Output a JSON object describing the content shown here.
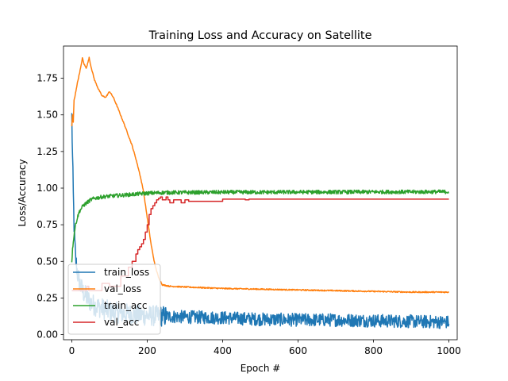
{
  "chart_data": {
    "type": "line",
    "title": "Training Loss and Accuracy on Satellite",
    "xlabel": "Epoch #",
    "ylabel": "Loss/Accuracy",
    "xlim": [
      -22,
      1022
    ],
    "ylim": [
      -0.035,
      1.97
    ],
    "xticks": [
      0,
      200,
      400,
      600,
      800,
      1000
    ],
    "yticks": [
      0.0,
      0.25,
      0.5,
      0.75,
      1.0,
      1.25,
      1.5,
      1.75
    ],
    "grid": false,
    "legend_position": "lower-left",
    "series": [
      {
        "name": "train_loss",
        "color": "#1f77b4",
        "x": [
          0,
          2,
          4,
          6,
          8,
          10,
          15,
          20,
          25,
          30,
          40,
          50,
          60,
          80,
          100,
          120,
          150,
          200,
          250,
          300,
          400,
          500,
          600,
          700,
          800,
          900,
          1000
        ],
        "y": [
          1.49,
          1.2,
          0.95,
          0.75,
          0.62,
          0.52,
          0.42,
          0.36,
          0.32,
          0.29,
          0.25,
          0.22,
          0.2,
          0.18,
          0.16,
          0.15,
          0.14,
          0.13,
          0.125,
          0.12,
          0.115,
          0.105,
          0.1,
          0.1,
          0.095,
          0.09,
          0.085
        ],
        "noise": 0.045
      },
      {
        "name": "val_loss",
        "color": "#ff7f0e",
        "x": [
          0,
          2,
          4,
          6,
          8,
          10,
          12,
          15,
          20,
          25,
          28,
          32,
          38,
          42,
          46,
          50,
          60,
          70,
          80,
          90,
          100,
          105,
          110,
          120,
          140,
          160,
          170,
          180,
          190,
          200,
          210,
          220,
          230,
          240,
          260,
          300,
          400,
          500,
          600,
          700,
          800,
          900,
          1000
        ],
        "y": [
          1.42,
          1.5,
          1.45,
          1.6,
          1.62,
          1.65,
          1.68,
          1.72,
          1.78,
          1.84,
          1.89,
          1.85,
          1.82,
          1.85,
          1.89,
          1.84,
          1.74,
          1.68,
          1.63,
          1.62,
          1.66,
          1.64,
          1.62,
          1.56,
          1.43,
          1.29,
          1.2,
          1.1,
          0.98,
          0.8,
          0.62,
          0.48,
          0.39,
          0.34,
          0.33,
          0.325,
          0.315,
          0.31,
          0.305,
          0.3,
          0.295,
          0.29,
          0.29
        ],
        "noise": 0.004
      },
      {
        "name": "train_acc",
        "color": "#2ca02c",
        "x": [
          0,
          2,
          4,
          6,
          8,
          10,
          15,
          20,
          30,
          40,
          50,
          60,
          80,
          100,
          150,
          200,
          250,
          300,
          400,
          500,
          600,
          700,
          800,
          900,
          1000
        ],
        "y": [
          0.5,
          0.58,
          0.64,
          0.68,
          0.72,
          0.75,
          0.8,
          0.84,
          0.88,
          0.9,
          0.92,
          0.93,
          0.94,
          0.945,
          0.955,
          0.965,
          0.97,
          0.97,
          0.972,
          0.972,
          0.973,
          0.973,
          0.974,
          0.974,
          0.975
        ],
        "noise": 0.013
      },
      {
        "name": "val_acc",
        "color": "#d62728",
        "x": [
          0,
          40,
          40,
          45,
          45,
          80,
          80,
          100,
          100,
          130,
          130,
          150,
          150,
          160,
          160,
          170,
          170,
          175,
          175,
          180,
          180,
          185,
          185,
          190,
          190,
          195,
          195,
          200,
          200,
          205,
          205,
          210,
          210,
          215,
          215,
          220,
          220,
          225,
          225,
          230,
          230,
          235,
          235,
          240,
          240,
          250,
          250,
          255,
          255,
          260,
          260,
          270,
          270,
          290,
          290,
          300,
          300,
          310,
          310,
          400,
          400,
          460,
          460,
          470,
          470,
          1000
        ],
        "y": [
          0.3,
          0.3,
          0.33,
          0.33,
          0.3,
          0.3,
          0.35,
          0.35,
          0.33,
          0.33,
          0.4,
          0.4,
          0.46,
          0.46,
          0.5,
          0.5,
          0.55,
          0.55,
          0.58,
          0.58,
          0.6,
          0.6,
          0.62,
          0.62,
          0.65,
          0.65,
          0.7,
          0.7,
          0.75,
          0.75,
          0.82,
          0.82,
          0.86,
          0.86,
          0.88,
          0.88,
          0.9,
          0.9,
          0.92,
          0.92,
          0.93,
          0.93,
          0.94,
          0.94,
          0.92,
          0.92,
          0.94,
          0.94,
          0.92,
          0.92,
          0.9,
          0.9,
          0.92,
          0.92,
          0.9,
          0.9,
          0.92,
          0.92,
          0.91,
          0.91,
          0.925,
          0.925,
          0.92,
          0.92,
          0.925,
          0.925
        ]
      }
    ]
  }
}
